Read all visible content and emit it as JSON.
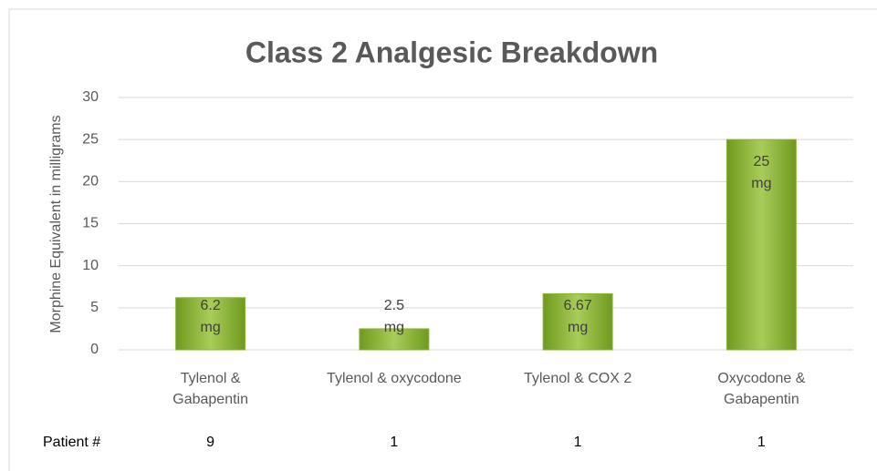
{
  "chart_data": {
    "type": "bar",
    "title": "Class 2 Analgesic Breakdown",
    "y_label": "Morphine Equivalent in milligrams",
    "categories": [
      "Tylenol &\nGabapentin",
      "Tylenol & oxycodone",
      "Tylenol & COX 2",
      "Oxycodone &\nGabapentin"
    ],
    "values": [
      6.2,
      2.5,
      6.67,
      25
    ],
    "value_labels": [
      "6.2\nmg",
      "2.5\nmg",
      "6.67\nmg",
      "25\nmg"
    ],
    "color": "#8db33a",
    "ylim": [
      0,
      30
    ],
    "yticks": [
      0,
      5,
      10,
      15,
      20,
      25,
      30
    ],
    "grid": true,
    "row_label": "Patient #",
    "row_values": [
      9,
      1,
      1,
      1
    ]
  }
}
